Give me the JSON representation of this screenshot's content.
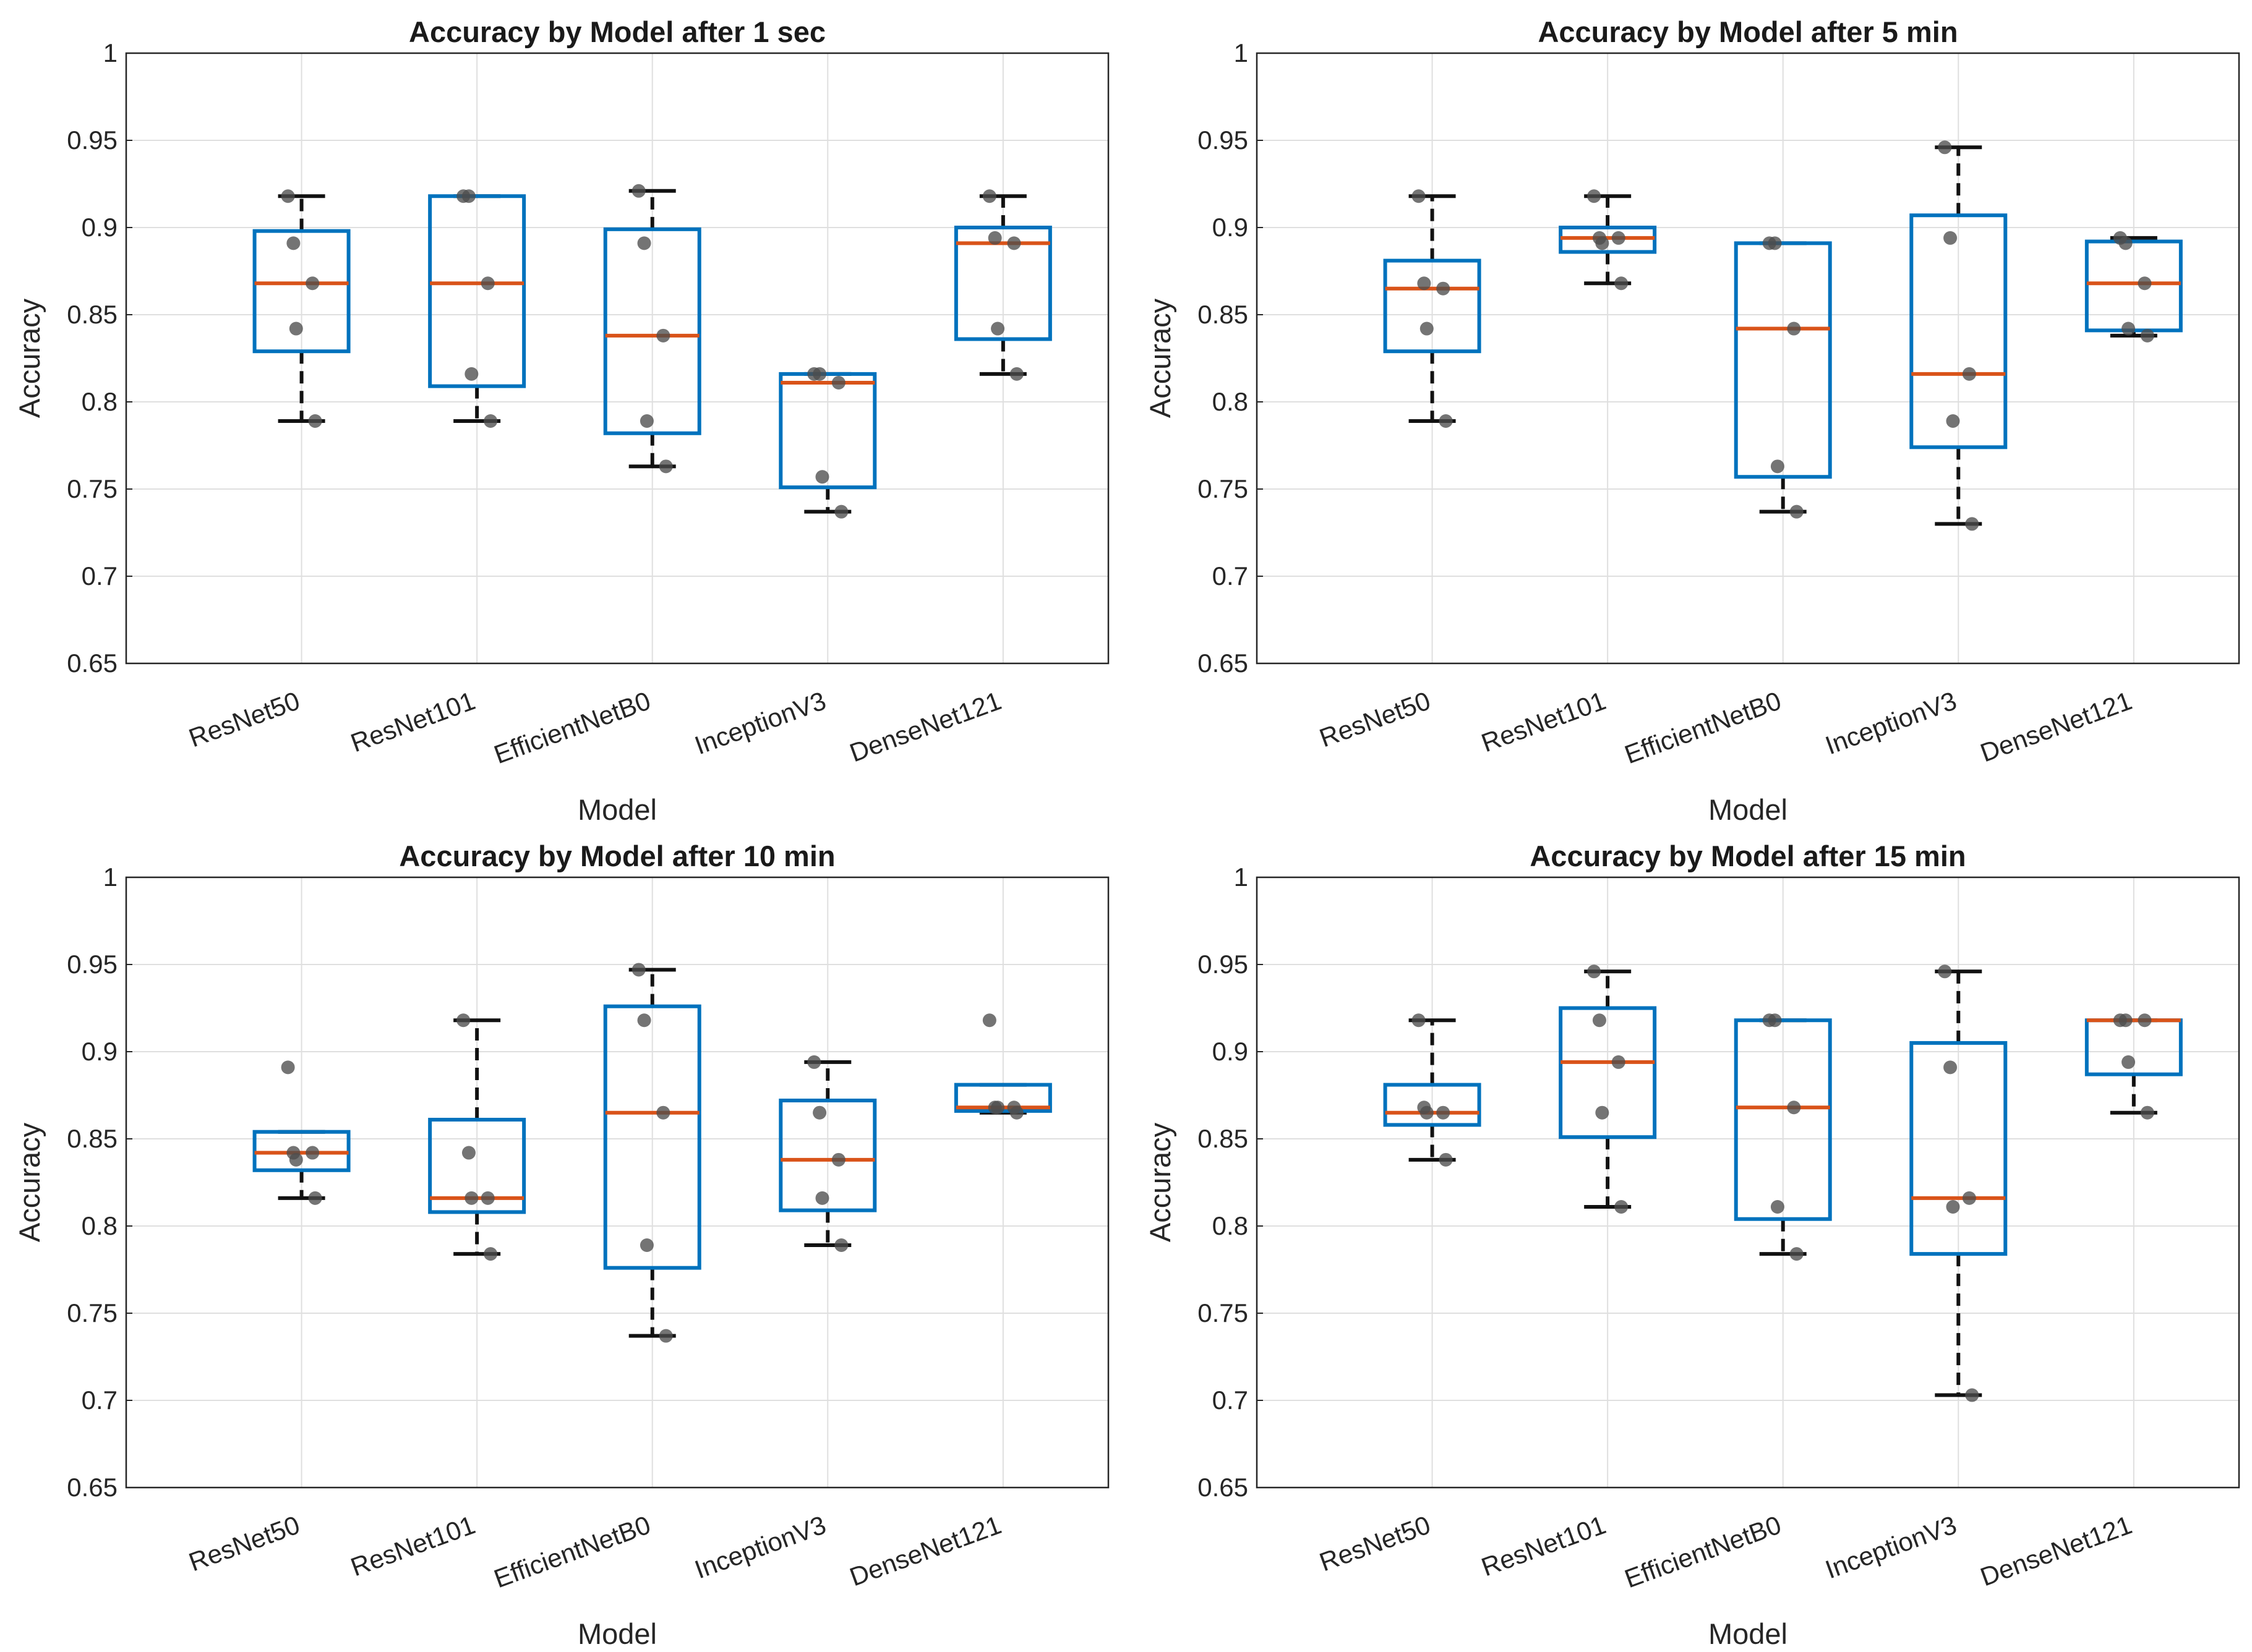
{
  "colors": {
    "box": "#0072BD",
    "median": "#D95319",
    "whisker": "#111111",
    "point": "#4d4d4d",
    "grid": "#dfdfdf",
    "axis": "#262626"
  },
  "chart_data": [
    {
      "type": "boxplot",
      "title": "Accuracy by Model after 1 sec",
      "xlabel": "Model",
      "ylabel": "Accuracy",
      "ylim": [
        0.65,
        1
      ],
      "yticks": [
        "0.65",
        "0.7",
        "0.75",
        "0.8",
        "0.85",
        "0.9",
        "0.95",
        "1"
      ],
      "grid": true,
      "categories": [
        "ResNet50",
        "ResNet101",
        "EfficientNetB0",
        "InceptionV3",
        "DenseNet121"
      ],
      "boxes": [
        {
          "q1": 0.829,
          "median": 0.868,
          "q3": 0.898,
          "whisker_low": 0.789,
          "whisker_high": 0.918,
          "points": [
            0.918,
            0.891,
            0.868,
            0.842,
            0.789
          ]
        },
        {
          "q1": 0.809,
          "median": 0.868,
          "q3": 0.918,
          "whisker_low": 0.789,
          "whisker_high": 0.918,
          "points": [
            0.918,
            0.918,
            0.868,
            0.816,
            0.789
          ]
        },
        {
          "q1": 0.782,
          "median": 0.838,
          "q3": 0.899,
          "whisker_low": 0.763,
          "whisker_high": 0.921,
          "points": [
            0.921,
            0.891,
            0.838,
            0.789,
            0.763
          ]
        },
        {
          "q1": 0.751,
          "median": 0.811,
          "q3": 0.816,
          "whisker_low": 0.737,
          "whisker_high": 0.816,
          "points": [
            0.816,
            0.816,
            0.811,
            0.757,
            0.737
          ]
        },
        {
          "q1": 0.836,
          "median": 0.891,
          "q3": 0.9,
          "whisker_low": 0.816,
          "whisker_high": 0.918,
          "points": [
            0.918,
            0.894,
            0.891,
            0.842,
            0.816
          ]
        }
      ]
    },
    {
      "type": "boxplot",
      "title": "Accuracy by Model after 5 min",
      "xlabel": "Model",
      "ylabel": "Accuracy",
      "ylim": [
        0.65,
        1
      ],
      "yticks": [
        "0.65",
        "0.7",
        "0.75",
        "0.8",
        "0.85",
        "0.9",
        "0.95",
        "1"
      ],
      "grid": true,
      "categories": [
        "ResNet50",
        "ResNet101",
        "EfficientNetB0",
        "InceptionV3",
        "DenseNet121"
      ],
      "boxes": [
        {
          "q1": 0.829,
          "median": 0.865,
          "q3": 0.881,
          "whisker_low": 0.789,
          "whisker_high": 0.918,
          "points": [
            0.918,
            0.868,
            0.865,
            0.842,
            0.789
          ]
        },
        {
          "q1": 0.886,
          "median": 0.894,
          "q3": 0.9,
          "whisker_low": 0.868,
          "whisker_high": 0.918,
          "points": [
            0.918,
            0.894,
            0.894,
            0.891,
            0.868
          ]
        },
        {
          "q1": 0.757,
          "median": 0.842,
          "q3": 0.891,
          "whisker_low": 0.737,
          "whisker_high": 0.891,
          "points": [
            0.891,
            0.891,
            0.842,
            0.763,
            0.737
          ]
        },
        {
          "q1": 0.774,
          "median": 0.816,
          "q3": 0.907,
          "whisker_low": 0.73,
          "whisker_high": 0.946,
          "points": [
            0.946,
            0.894,
            0.816,
            0.789,
            0.73
          ]
        },
        {
          "q1": 0.841,
          "median": 0.868,
          "q3": 0.892,
          "whisker_low": 0.838,
          "whisker_high": 0.894,
          "points": [
            0.894,
            0.891,
            0.868,
            0.842,
            0.838
          ]
        }
      ]
    },
    {
      "type": "boxplot",
      "title": "Accuracy by Model after 10 min",
      "xlabel": "Model",
      "ylabel": "Accuracy",
      "ylim": [
        0.65,
        1
      ],
      "yticks": [
        "0.65",
        "0.7",
        "0.75",
        "0.8",
        "0.85",
        "0.9",
        "0.95",
        "1"
      ],
      "grid": true,
      "categories": [
        "ResNet50",
        "ResNet101",
        "EfficientNetB0",
        "InceptionV3",
        "DenseNet121"
      ],
      "boxes": [
        {
          "q1": 0.832,
          "median": 0.842,
          "q3": 0.854,
          "whisker_low": 0.816,
          "whisker_high": 0.854,
          "points": [
            0.891,
            0.842,
            0.842,
            0.838,
            0.816
          ]
        },
        {
          "q1": 0.808,
          "median": 0.816,
          "q3": 0.861,
          "whisker_low": 0.784,
          "whisker_high": 0.918,
          "points": [
            0.918,
            0.842,
            0.816,
            0.816,
            0.784
          ]
        },
        {
          "q1": 0.776,
          "median": 0.865,
          "q3": 0.926,
          "whisker_low": 0.737,
          "whisker_high": 0.947,
          "points": [
            0.947,
            0.918,
            0.865,
            0.789,
            0.737
          ]
        },
        {
          "q1": 0.809,
          "median": 0.838,
          "q3": 0.872,
          "whisker_low": 0.789,
          "whisker_high": 0.894,
          "points": [
            0.894,
            0.865,
            0.838,
            0.816,
            0.789
          ]
        },
        {
          "q1": 0.866,
          "median": 0.868,
          "q3": 0.881,
          "whisker_low": 0.865,
          "whisker_high": 0.881,
          "points": [
            0.918,
            0.868,
            0.868,
            0.868,
            0.865
          ]
        }
      ]
    },
    {
      "type": "boxplot",
      "title": "Accuracy by Model after 15 min",
      "xlabel": "Model",
      "ylabel": "Accuracy",
      "ylim": [
        0.65,
        1
      ],
      "yticks": [
        "0.65",
        "0.7",
        "0.75",
        "0.8",
        "0.85",
        "0.9",
        "0.95",
        "1"
      ],
      "grid": true,
      "categories": [
        "ResNet50",
        "ResNet101",
        "EfficientNetB0",
        "InceptionV3",
        "DenseNet121"
      ],
      "boxes": [
        {
          "q1": 0.858,
          "median": 0.865,
          "q3": 0.881,
          "whisker_low": 0.838,
          "whisker_high": 0.918,
          "points": [
            0.918,
            0.868,
            0.865,
            0.865,
            0.838
          ]
        },
        {
          "q1": 0.851,
          "median": 0.894,
          "q3": 0.925,
          "whisker_low": 0.811,
          "whisker_high": 0.946,
          "points": [
            0.946,
            0.918,
            0.894,
            0.865,
            0.811
          ]
        },
        {
          "q1": 0.804,
          "median": 0.868,
          "q3": 0.918,
          "whisker_low": 0.784,
          "whisker_high": 0.918,
          "points": [
            0.918,
            0.918,
            0.868,
            0.811,
            0.784
          ]
        },
        {
          "q1": 0.784,
          "median": 0.816,
          "q3": 0.905,
          "whisker_low": 0.703,
          "whisker_high": 0.946,
          "points": [
            0.946,
            0.891,
            0.816,
            0.811,
            0.703
          ]
        },
        {
          "q1": 0.887,
          "median": 0.918,
          "q3": 0.918,
          "whisker_low": 0.865,
          "whisker_high": 0.918,
          "points": [
            0.918,
            0.918,
            0.918,
            0.894,
            0.865
          ]
        }
      ]
    }
  ]
}
